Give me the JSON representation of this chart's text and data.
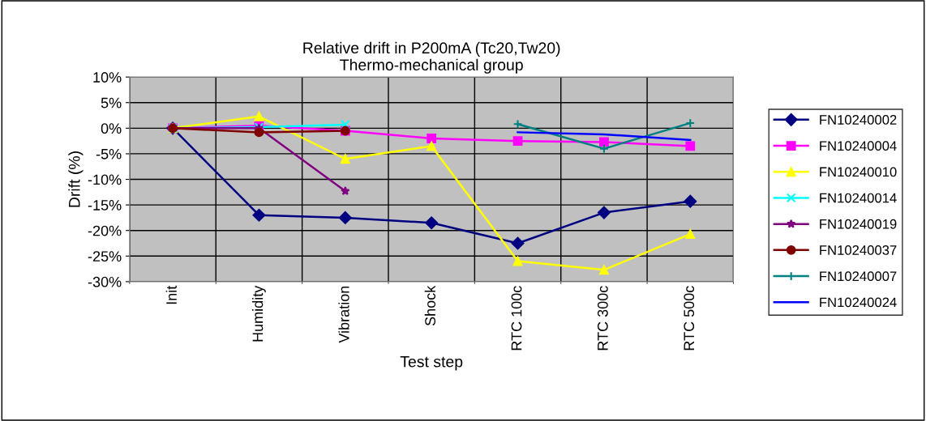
{
  "chart_data": {
    "type": "line",
    "title": "Relative drift in P200mA (Tc20,Tw20)\nThermo-mechanical group",
    "xlabel": "Test step",
    "ylabel": "Drift (%)",
    "categories": [
      "Init",
      "Humidity",
      "Vibration",
      "Shock",
      "RTC 100c",
      "RTC 300c",
      "RTC 500c"
    ],
    "series": [
      {
        "name": "FN10240002",
        "color": "#000080",
        "marker": "diamond",
        "values": [
          0,
          -17,
          -17.5,
          -18.5,
          -22.5,
          -16.5,
          -14.3
        ]
      },
      {
        "name": "FN10240004",
        "color": "#ff00ff",
        "marker": "square",
        "values": [
          0,
          0.5,
          -0.5,
          -2,
          -2.5,
          -2.7,
          -3.5
        ]
      },
      {
        "name": "FN10240010",
        "color": "#ffff00",
        "marker": "triangle",
        "values": [
          0,
          2.3,
          -6,
          -3.5,
          -26,
          -27.7,
          -20.7
        ]
      },
      {
        "name": "FN10240014",
        "color": "#00ffff",
        "marker": "cross",
        "values": [
          0,
          0.2,
          0.7,
          null,
          null,
          null,
          null
        ]
      },
      {
        "name": "FN10240019",
        "color": "#800080",
        "marker": "star",
        "values": [
          0,
          0,
          -12.3,
          null,
          null,
          null,
          null
        ]
      },
      {
        "name": "FN10240037",
        "color": "#800000",
        "marker": "circle",
        "values": [
          0,
          -0.8,
          -0.5,
          null,
          null,
          null,
          null
        ]
      },
      {
        "name": "FN10240007",
        "color": "#008080",
        "marker": "plus",
        "values": [
          null,
          null,
          null,
          null,
          0.8,
          -4,
          1
        ]
      },
      {
        "name": "FN10240024",
        "color": "#0000ff",
        "marker": "none",
        "values": [
          null,
          null,
          null,
          null,
          -0.8,
          -1.2,
          -2.3
        ]
      }
    ],
    "ylim": [
      -30,
      10
    ],
    "yticks": [
      {
        "value": -30,
        "label": "-30%"
      },
      {
        "value": -25,
        "label": "-25%"
      },
      {
        "value": -20,
        "label": "-20%"
      },
      {
        "value": -15,
        "label": "-15%"
      },
      {
        "value": -10,
        "label": "-10%"
      },
      {
        "value": -5,
        "label": "-5%"
      },
      {
        "value": 0,
        "label": "0%"
      },
      {
        "value": 5,
        "label": "5%"
      },
      {
        "value": 10,
        "label": "10%"
      }
    ],
    "grid": true,
    "legend": "right",
    "line_style": "solid"
  }
}
